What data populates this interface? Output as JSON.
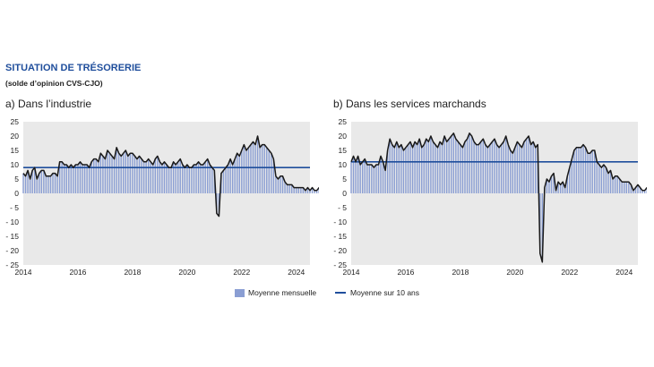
{
  "header": {
    "title": "SITUATION DE TRÉSORERIE",
    "subtitle": "(solde d’opinion CVS-CJO)"
  },
  "legend": {
    "bars": "Moyenne mensuelle",
    "line": "Moyenne sur 10 ans"
  },
  "colors": {
    "bars": "#8a9ed3",
    "monthly_line": "#1a1a1a",
    "average_line": "#1f4e9c",
    "title": "#1f4e9c"
  },
  "chart_data": [
    {
      "type": "bar",
      "title": "a)  Dans l’industrie",
      "xlabel": "",
      "ylabel": "",
      "x_start": "2014-01",
      "x_end": "2024-05",
      "xlim": [
        2014,
        2024.5
      ],
      "ylim": [
        -25,
        25
      ],
      "x_ticks": [
        "2014",
        "2016",
        "2018",
        "2020",
        "2022",
        "2024"
      ],
      "y_ticks": [
        "25",
        "20",
        "15",
        "10",
        "5",
        "0",
        "- 5",
        "- 10",
        "- 15",
        "- 20",
        "- 25"
      ],
      "ten_year_average": 9,
      "series": [
        {
          "name": "Moyenne mensuelle",
          "display": "bars-with-line",
          "values": [
            7,
            6,
            8,
            5,
            8,
            9,
            5,
            7,
            8,
            8,
            6,
            6,
            6,
            7,
            7,
            6,
            11,
            11,
            10,
            10,
            9,
            10,
            9,
            10,
            10,
            11,
            10,
            10,
            10,
            9,
            11,
            12,
            12,
            11,
            14,
            13,
            12,
            15,
            14,
            13,
            12,
            16,
            14,
            13,
            14,
            15,
            13,
            14,
            14,
            13,
            12,
            13,
            12,
            11,
            11,
            12,
            11,
            10,
            12,
            13,
            11,
            10,
            11,
            10,
            9,
            9,
            11,
            10,
            11,
            12,
            10,
            9,
            10,
            9,
            9,
            10,
            10,
            11,
            10,
            10,
            11,
            12,
            10,
            9,
            8,
            -7,
            -8,
            7,
            8,
            9,
            10,
            12,
            10,
            12,
            14,
            13,
            15,
            17,
            15,
            16,
            17,
            18,
            17,
            20,
            16,
            17,
            17,
            16,
            15,
            14,
            12,
            6,
            5,
            6,
            6,
            4,
            3,
            3,
            3,
            2,
            2,
            2,
            2,
            2,
            1,
            2,
            1,
            2,
            1,
            1,
            2,
            2,
            1,
            0,
            0,
            0,
            0,
            0,
            -1,
            0,
            -1
          ]
        }
      ]
    },
    {
      "type": "bar",
      "title": "b)  Dans les services marchands",
      "xlabel": "",
      "ylabel": "",
      "x_start": "2014-01",
      "x_end": "2024-05",
      "xlim": [
        2014,
        2024.5
      ],
      "ylim": [
        -25,
        25
      ],
      "x_ticks": [
        "2014",
        "2016",
        "2018",
        "2020",
        "2022",
        "2024"
      ],
      "y_ticks": [
        "25",
        "20",
        "15",
        "10",
        "5",
        "0",
        "- 5",
        "- 10",
        "- 15",
        "- 20",
        "- 25"
      ],
      "ten_year_average": 11,
      "series": [
        {
          "name": "Moyenne mensuelle",
          "display": "bars-with-line",
          "values": [
            11,
            13,
            11,
            13,
            10,
            11,
            12,
            10,
            10,
            10,
            9,
            10,
            10,
            13,
            11,
            8,
            15,
            19,
            17,
            16,
            18,
            16,
            17,
            15,
            16,
            17,
            18,
            16,
            18,
            17,
            19,
            16,
            17,
            19,
            18,
            20,
            18,
            17,
            16,
            18,
            17,
            20,
            18,
            19,
            20,
            21,
            19,
            18,
            17,
            16,
            18,
            19,
            21,
            20,
            18,
            17,
            17,
            18,
            19,
            17,
            16,
            17,
            18,
            19,
            17,
            16,
            17,
            18,
            20,
            17,
            15,
            14,
            16,
            18,
            17,
            16,
            18,
            19,
            20,
            17,
            18,
            16,
            17,
            -21,
            -24,
            2,
            5,
            4,
            6,
            7,
            1,
            4,
            3,
            4,
            2,
            6,
            9,
            12,
            15,
            16,
            16,
            16,
            17,
            16,
            14,
            14,
            15,
            15,
            11,
            10,
            9,
            10,
            9,
            7,
            8,
            5,
            6,
            6,
            5,
            4,
            4,
            4,
            4,
            3,
            1,
            2,
            3,
            2,
            1,
            1,
            2,
            2,
            3,
            2,
            1,
            2,
            2,
            1,
            1,
            2,
            1,
            2,
            3,
            3,
            2
          ]
        }
      ]
    }
  ]
}
